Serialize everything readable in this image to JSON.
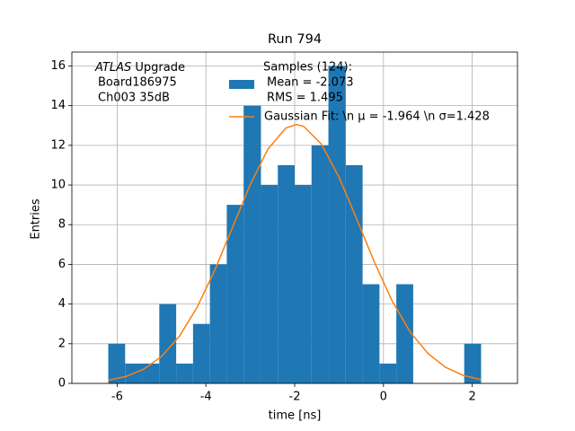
{
  "chart_data": {
    "type": "histogram",
    "title": "Run 794",
    "xlabel": "time [ns]",
    "ylabel": "Entries",
    "annotation": {
      "italic": "ATLAS",
      "lines": [
        " Upgrade",
        "Board186975",
        "Ch003 35dB"
      ]
    },
    "bins": [
      -6.2,
      -5.82,
      -5.44,
      -5.05,
      -4.67,
      -4.29,
      -3.91,
      -3.53,
      -3.15,
      -2.76,
      -2.38,
      -2.0,
      -1.62,
      -1.24,
      -0.85,
      -0.47,
      -0.09,
      0.29,
      0.67,
      1.05,
      1.44,
      1.82,
      2.2
    ],
    "series": [
      {
        "name": [
          "Samples (124):",
          "Mean = -2.073",
          "RMS = 1.495"
        ],
        "color": "#1f77b4",
        "values": [
          2,
          1,
          1,
          4,
          1,
          3,
          6,
          9,
          14,
          10,
          11,
          10,
          12,
          16,
          11,
          5,
          1,
          5,
          0,
          0,
          0,
          2
        ]
      },
      {
        "name": "Gaussian Fit: \\n μ = -1.964 \\n σ=1.428",
        "color": "#ff7f0e",
        "type": "line",
        "x": [
          -6.2,
          -5.8,
          -5.4,
          -5.0,
          -4.6,
          -4.2,
          -3.8,
          -3.4,
          -3.0,
          -2.6,
          -2.2,
          -1.964,
          -1.8,
          -1.4,
          -1.0,
          -0.6,
          -0.2,
          0.2,
          0.6,
          1.0,
          1.4,
          1.8,
          2.2
        ],
        "values": [
          0.16,
          0.35,
          0.72,
          1.36,
          2.37,
          3.83,
          5.71,
          7.87,
          10.03,
          11.82,
          12.87,
          13.05,
          12.96,
          12.07,
          10.39,
          8.27,
          6.09,
          4.14,
          2.6,
          1.51,
          0.81,
          0.4,
          0.19
        ]
      }
    ],
    "xlim": [
      -7.02,
      3.02
    ],
    "ylim": [
      0,
      16.7
    ],
    "xticks": [
      -6,
      -4,
      -2,
      0,
      2
    ],
    "yticks": [
      0,
      2,
      4,
      6,
      8,
      10,
      12,
      14,
      16
    ],
    "grid": true
  }
}
